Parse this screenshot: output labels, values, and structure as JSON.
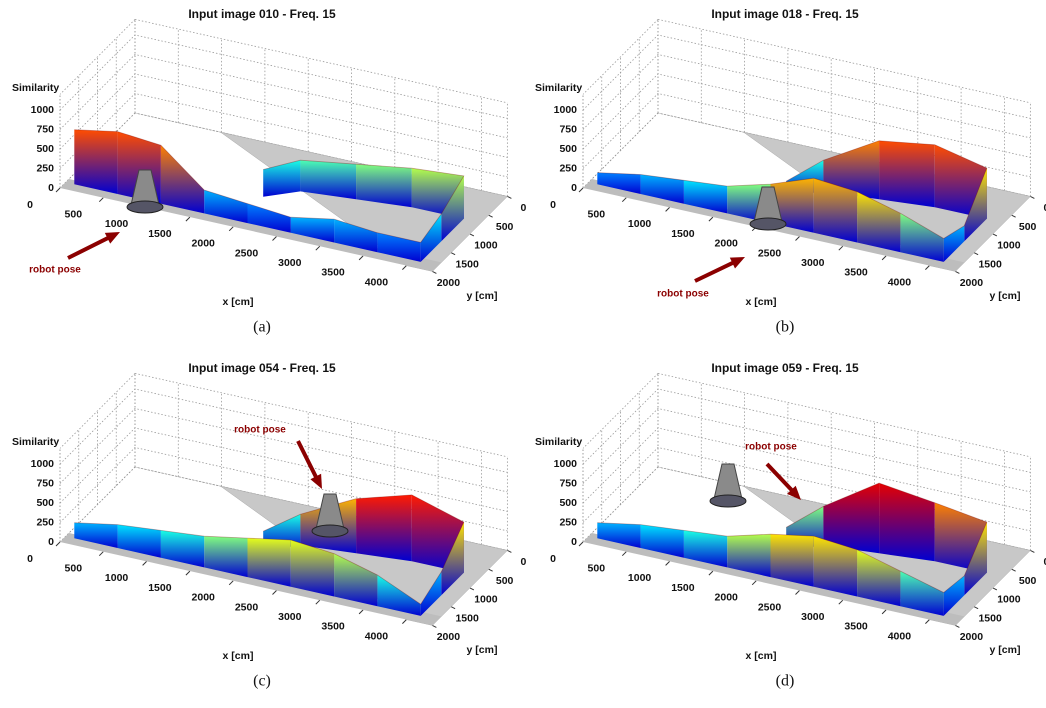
{
  "chart_data": [
    {
      "type": "surface3d",
      "title": "Input image 010 - Freq. 15",
      "zlabel": "Similarity",
      "xlabel": "x [cm]",
      "ylabel": "y [cm]",
      "annotation": "robot pose",
      "caption": "(a)",
      "zlim": [
        0,
        1200
      ],
      "zticks": [
        0,
        250,
        500,
        750,
        1000
      ],
      "xlim": [
        0,
        4300
      ],
      "xticks": [
        0,
        500,
        1000,
        1500,
        2000,
        2500,
        3000,
        3500,
        4000
      ],
      "ylim": [
        0,
        2000
      ],
      "yticks": [
        0,
        500,
        1000,
        1500,
        2000
      ],
      "x": [
        100,
        600,
        1100,
        1600,
        2100,
        2600,
        3100,
        3600,
        4100,
        4100,
        4100,
        3500,
        2900,
        2300,
        2000
      ],
      "y": [
        1850,
        1850,
        1850,
        1850,
        1850,
        1850,
        1850,
        1850,
        1850,
        1300,
        700,
        700,
        800,
        900,
        1200
      ],
      "values": [
        700,
        800,
        750,
        300,
        250,
        200,
        300,
        250,
        250,
        350,
        550,
        500,
        450,
        400,
        350
      ]
    },
    {
      "type": "surface3d",
      "title": "Input image 018 - Freq. 15",
      "zlabel": "Similarity",
      "xlabel": "x [cm]",
      "ylabel": "y [cm]",
      "annotation": "robot pose",
      "caption": "(b)",
      "zlim": [
        0,
        1200
      ],
      "zticks": [
        0,
        250,
        500,
        750,
        1000
      ],
      "xlim": [
        0,
        4300
      ],
      "xticks": [
        0,
        500,
        1000,
        1500,
        2000,
        2500,
        3000,
        3500,
        4000
      ],
      "ylim": [
        0,
        2000
      ],
      "yticks": [
        0,
        500,
        1000,
        1500,
        2000
      ],
      "x": [
        100,
        600,
        1100,
        1600,
        2100,
        2600,
        3100,
        3600,
        4100,
        4100,
        4100,
        3500,
        2900,
        2300,
        2000
      ],
      "y": [
        1850,
        1850,
        1850,
        1850,
        1850,
        1850,
        1850,
        1850,
        1850,
        1300,
        700,
        700,
        800,
        900,
        1200
      ],
      "values": [
        150,
        250,
        300,
        350,
        500,
        700,
        650,
        500,
        300,
        200,
        650,
        800,
        750,
        400,
        200
      ]
    },
    {
      "type": "surface3d",
      "title": "Input image 054 - Freq. 15",
      "zlabel": "Similarity",
      "xlabel": "x [cm]",
      "ylabel": "y [cm]",
      "annotation": "robot pose",
      "caption": "(c)",
      "zlim": [
        0,
        1200
      ],
      "zticks": [
        0,
        250,
        500,
        750,
        1000
      ],
      "xlim": [
        0,
        4300
      ],
      "xticks": [
        0,
        500,
        1000,
        1500,
        2000,
        2500,
        3000,
        3500,
        4000
      ],
      "ylim": [
        0,
        2000
      ],
      "yticks": [
        0,
        500,
        1000,
        1500,
        2000
      ],
      "x": [
        100,
        600,
        1100,
        1600,
        2100,
        2600,
        3100,
        3600,
        4100,
        4100,
        4100,
        3500,
        2900,
        2300,
        2000
      ],
      "y": [
        1850,
        1850,
        1850,
        1850,
        1850,
        1850,
        1850,
        1850,
        1850,
        1300,
        700,
        700,
        800,
        900,
        1200
      ],
      "values": [
        200,
        300,
        350,
        400,
        500,
        600,
        550,
        400,
        150,
        300,
        650,
        850,
        700,
        400,
        250
      ]
    },
    {
      "type": "surface3d",
      "title": "Input image 059 - Freq. 15",
      "zlabel": "Similarity",
      "xlabel": "x [cm]",
      "ylabel": "y [cm]",
      "annotation": "robot pose",
      "caption": "(d)",
      "zlim": [
        0,
        1200
      ],
      "zticks": [
        0,
        250,
        500,
        750,
        1000
      ],
      "xlim": [
        0,
        4300
      ],
      "xticks": [
        0,
        500,
        1000,
        1500,
        2000,
        2500,
        3000,
        3500,
        4000
      ],
      "ylim": [
        0,
        2000
      ],
      "yticks": [
        0,
        500,
        1000,
        1500,
        2000
      ],
      "x": [
        100,
        600,
        1100,
        1600,
        2100,
        2600,
        3100,
        3600,
        4100,
        4100,
        4100,
        3500,
        2900,
        2300,
        2000
      ],
      "y": [
        1850,
        1850,
        1850,
        1850,
        1850,
        1850,
        1850,
        1850,
        1850,
        1300,
        700,
        700,
        800,
        900,
        1200
      ],
      "values": [
        200,
        300,
        350,
        400,
        550,
        650,
        600,
        450,
        300,
        250,
        650,
        750,
        900,
        500,
        300
      ]
    }
  ]
}
